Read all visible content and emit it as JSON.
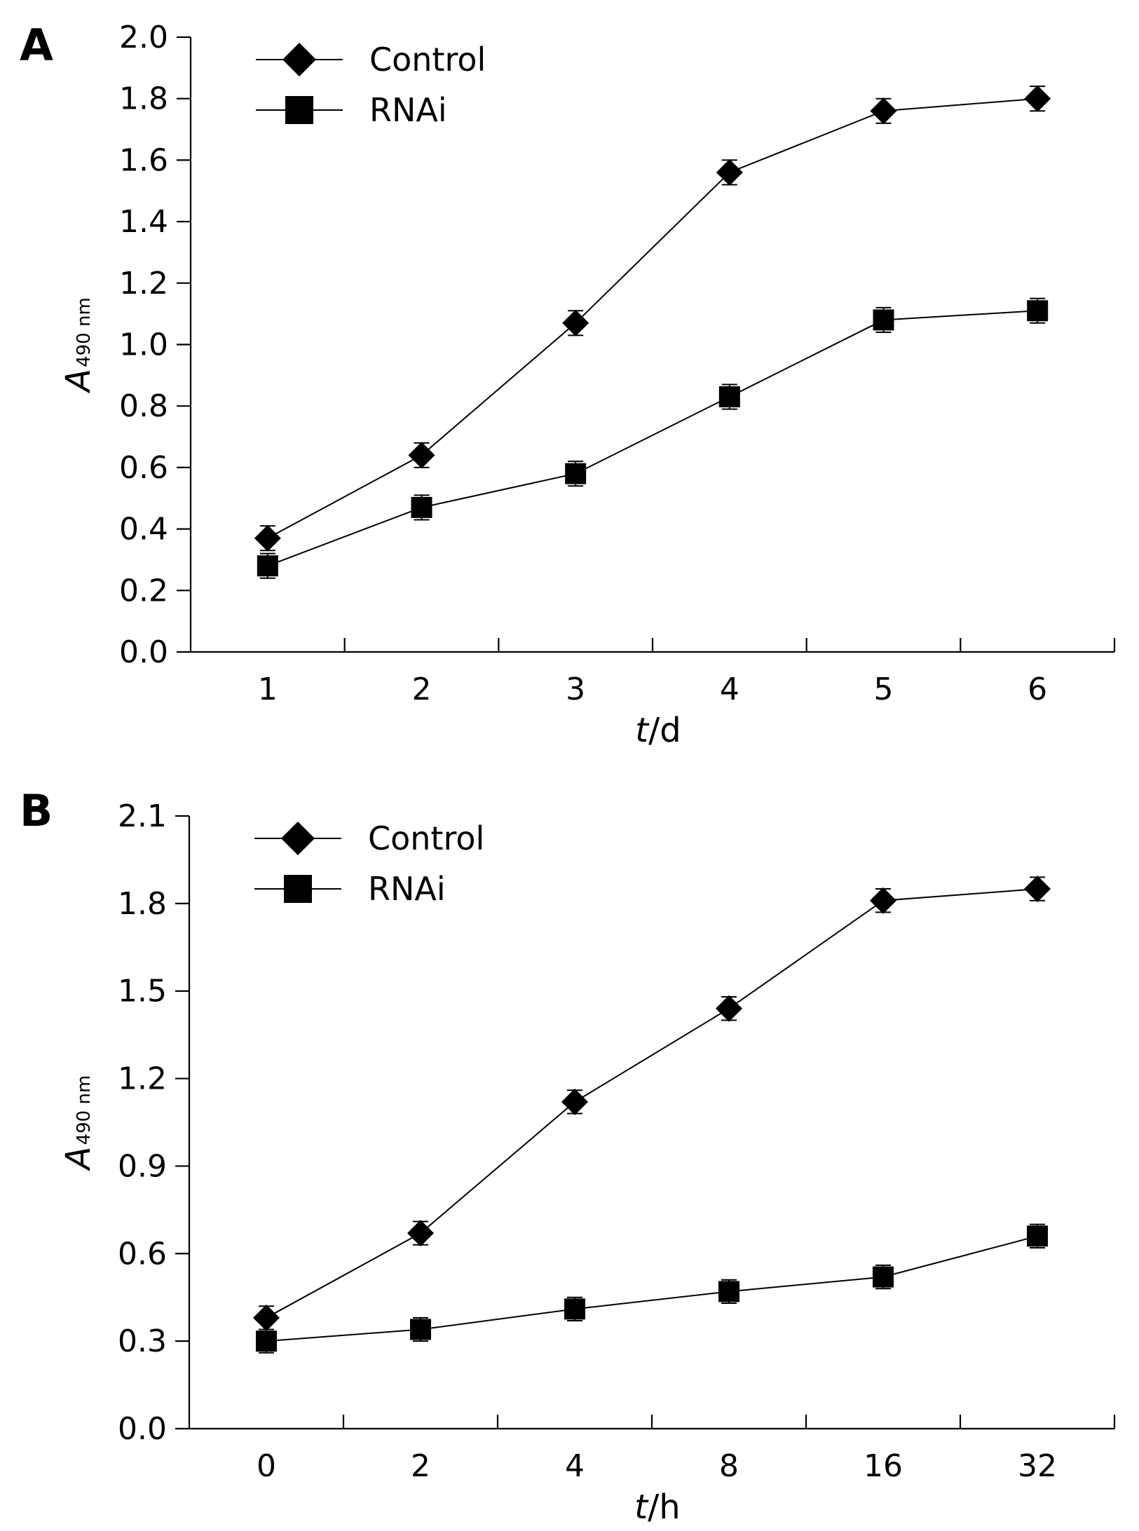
{
  "chart_data": [
    {
      "type": "line",
      "panel_label": "A",
      "categories": [
        "1",
        "2",
        "3",
        "4",
        "5",
        "6"
      ],
      "xlabel": {
        "italic": "t",
        "rest": "/d"
      },
      "ylabel": {
        "symbol": "A",
        "subscript": "490 nm"
      },
      "ylim": [
        0,
        2.0
      ],
      "yticks": [
        "0.0",
        "0.2",
        "0.4",
        "0.6",
        "0.8",
        "1.0",
        "1.2",
        "1.4",
        "1.6",
        "1.8",
        "2.0"
      ],
      "grid": false,
      "legend_position": "top-left",
      "series": [
        {
          "name": "Control",
          "marker": "diamond",
          "color": "#000000",
          "values": [
            0.37,
            0.64,
            1.07,
            1.56,
            1.76,
            1.8
          ],
          "errors": [
            0.04,
            0.04,
            0.04,
            0.04,
            0.04,
            0.04
          ]
        },
        {
          "name": "RNAi",
          "marker": "square",
          "color": "#000000",
          "values": [
            0.28,
            0.47,
            0.58,
            0.83,
            1.08,
            1.11
          ],
          "errors": [
            0.04,
            0.04,
            0.04,
            0.04,
            0.04,
            0.04
          ]
        }
      ]
    },
    {
      "type": "line",
      "panel_label": "B",
      "categories": [
        "0",
        "2",
        "4",
        "8",
        "16",
        "32"
      ],
      "xlabel": {
        "italic": "t",
        "rest": "/h"
      },
      "ylabel": {
        "symbol": "A",
        "subscript": "490 nm"
      },
      "ylim": [
        0,
        2.1
      ],
      "yticks": [
        "0.0",
        "0.3",
        "0.6",
        "0.9",
        "1.2",
        "1.5",
        "1.8",
        "2.1"
      ],
      "grid": false,
      "legend_position": "top-left",
      "series": [
        {
          "name": "Control",
          "marker": "diamond",
          "color": "#000000",
          "values": [
            0.38,
            0.67,
            1.12,
            1.44,
            1.81,
            1.85
          ],
          "errors": [
            0.04,
            0.04,
            0.04,
            0.04,
            0.04,
            0.04
          ]
        },
        {
          "name": "RNAi",
          "marker": "square",
          "color": "#000000",
          "values": [
            0.3,
            0.34,
            0.41,
            0.47,
            0.52,
            0.66
          ],
          "errors": [
            0.04,
            0.04,
            0.04,
            0.04,
            0.04,
            0.04
          ]
        }
      ]
    }
  ]
}
